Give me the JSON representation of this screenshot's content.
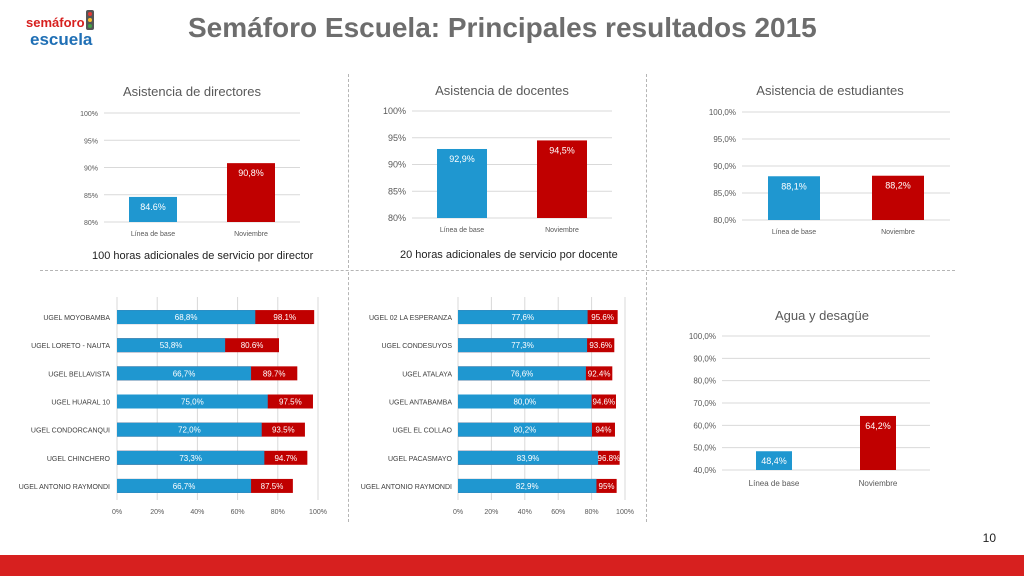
{
  "page": {
    "title": "Semáforo Escuela: Principales resultados 2015",
    "logo_top": "semáforo",
    "logo_bottom": "escuela",
    "page_number": "10",
    "caption_directors": "100 horas adicionales de servicio por director",
    "caption_teachers": "20 horas adicionales de servicio por docente"
  },
  "colors": {
    "blue": "#1f97d0",
    "red": "#c00000",
    "title": "#6d6d6d",
    "bar_footer": "#d7201f"
  },
  "chart_data": [
    {
      "id": "directores",
      "type": "bar",
      "title": "Asistencia de directores",
      "categories": [
        "Línea de base",
        "Noviembre"
      ],
      "values": [
        84.6,
        90.8
      ],
      "labels": [
        "84.6%",
        "90,8%"
      ],
      "colors": [
        "#1f97d0",
        "#c00000"
      ],
      "ylim": [
        80,
        100
      ],
      "ticks": [
        "80%",
        "85%",
        "90%",
        "95%",
        "100%"
      ]
    },
    {
      "id": "docentes",
      "type": "bar",
      "title": "Asistencia de docentes",
      "categories": [
        "Línea de base",
        "Noviembre"
      ],
      "values": [
        92.9,
        94.5
      ],
      "labels": [
        "92,9%",
        "94,5%"
      ],
      "colors": [
        "#1f97d0",
        "#c00000"
      ],
      "ylim": [
        80,
        100
      ],
      "ticks": [
        "80%",
        "85%",
        "90%",
        "95%",
        "100%"
      ]
    },
    {
      "id": "estudiantes",
      "type": "bar",
      "title": "Asistencia de estudiantes",
      "categories": [
        "Línea de base",
        "Noviembre"
      ],
      "values": [
        88.1,
        88.2
      ],
      "labels": [
        "88,1%",
        "88,2%"
      ],
      "colors": [
        "#1f97d0",
        "#c00000"
      ],
      "ylim": [
        80,
        100
      ],
      "ticks": [
        "80,0%",
        "85,0%",
        "90,0%",
        "95,0%",
        "100,0%"
      ]
    },
    {
      "id": "ugel_directores",
      "type": "bar",
      "orientation": "horizontal",
      "categories": [
        "UGEL MOYOBAMBA",
        "UGEL LORETO - NAUTA",
        "UGEL BELLAVISTA",
        "UGEL HUARAL 10",
        "UGEL CONDORCANQUI",
        "UGEL CHINCHERO",
        "UGEL ANTONIO RAYMONDI"
      ],
      "series": [
        {
          "values": [
            98.1,
            80.6,
            89.7,
            97.5,
            93.5,
            94.7,
            87.5
          ],
          "labels": [
            "98.1%",
            "80.6%",
            "89.7%",
            "97.5%",
            "93.5%",
            "94.7%",
            "87.5%"
          ],
          "color": "#c00000"
        },
        {
          "values": [
            68.8,
            53.8,
            66.7,
            75.0,
            72.0,
            73.3,
            66.7
          ],
          "labels": [
            "68,8%",
            "53,8%",
            "66,7%",
            "75,0%",
            "72,0%",
            "73,3%",
            "66,7%"
          ],
          "color": "#1f97d0"
        }
      ],
      "xlim": [
        0,
        100
      ],
      "ticks": [
        "0%",
        "20%",
        "40%",
        "60%",
        "80%",
        "100%"
      ]
    },
    {
      "id": "ugel_docentes",
      "type": "bar",
      "orientation": "horizontal",
      "categories": [
        "UGEL 02 LA ESPERANZA",
        "UGEL CONDESUYOS",
        "UGEL ATALAYA",
        "UGEL ANTABAMBA",
        "UGEL EL COLLAO",
        "UGEL PACASMAYO",
        "UGEL ANTONIO RAYMONDI"
      ],
      "series": [
        {
          "values": [
            95.6,
            93.6,
            92.4,
            94.6,
            94.0,
            96.8,
            95.0
          ],
          "labels": [
            "95.6%",
            "93.6%",
            "92.4%",
            "94.6%",
            "94%",
            "96.8%",
            "95%"
          ],
          "color": "#c00000"
        },
        {
          "values": [
            77.6,
            77.3,
            76.6,
            80.0,
            80.2,
            83.9,
            82.9
          ],
          "labels": [
            "77,6%",
            "77,3%",
            "76,6%",
            "80,0%",
            "80,2%",
            "83,9%",
            "82,9%"
          ],
          "color": "#1f97d0"
        }
      ],
      "xlim": [
        0,
        100
      ],
      "ticks": [
        "0%",
        "20%",
        "40%",
        "60%",
        "80%",
        "100%"
      ]
    },
    {
      "id": "agua",
      "type": "bar",
      "title": "Agua y desagüe",
      "categories": [
        "Línea de base",
        "Noviembre"
      ],
      "values": [
        48.4,
        64.2
      ],
      "labels": [
        "48,4%",
        "64,2%"
      ],
      "colors": [
        "#1f97d0",
        "#c00000"
      ],
      "ylim": [
        40,
        100
      ],
      "ticks": [
        "40,0%",
        "50,0%",
        "60,0%",
        "70,0%",
        "80,0%",
        "90,0%",
        "100,0%"
      ]
    }
  ]
}
